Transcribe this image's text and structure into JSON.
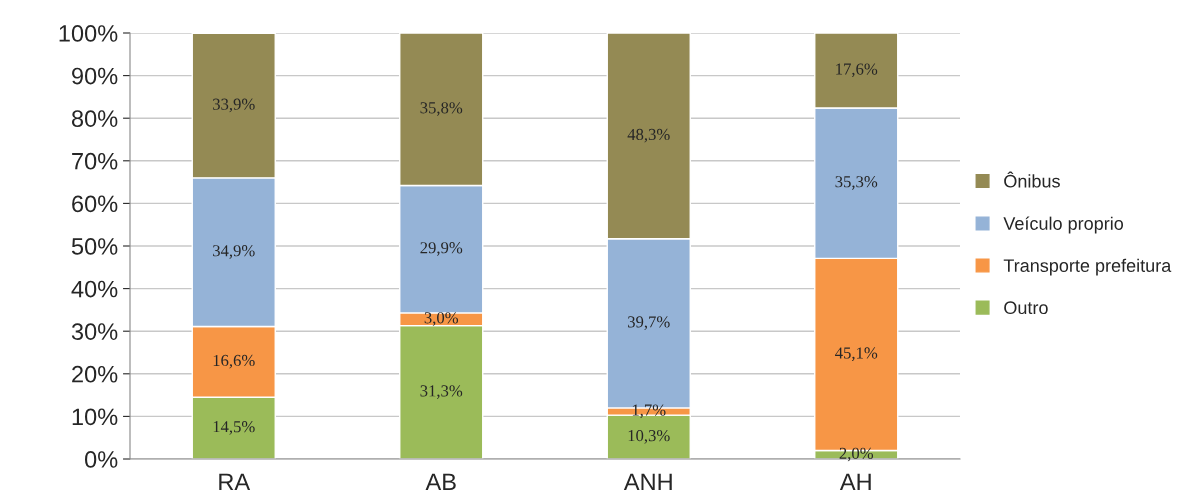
{
  "chart_data": {
    "type": "bar",
    "stacked": true,
    "categories": [
      "RA",
      "AB",
      "ANH",
      "AH"
    ],
    "series": [
      {
        "name": "Outro",
        "color": "#9bbb59",
        "values": [
          14.5,
          31.3,
          10.3,
          2.0
        ],
        "value_labels": [
          "14,5%",
          "31,3%",
          "10,3%",
          "2,0%"
        ]
      },
      {
        "name": "Transporte prefeitura",
        "color": "#f79646",
        "values": [
          16.6,
          3.0,
          1.7,
          45.1
        ],
        "value_labels": [
          "16,6%",
          "3,0%",
          "1,7%",
          "45,1%"
        ]
      },
      {
        "name": "Veículo proprio",
        "color": "#95b3d7",
        "values": [
          34.9,
          29.9,
          39.7,
          35.3
        ],
        "value_labels": [
          "34,9%",
          "29,9%",
          "39,7%",
          "35,3%"
        ]
      },
      {
        "name": "Ônibus",
        "color": "#948a54",
        "values": [
          33.9,
          35.8,
          48.3,
          17.6
        ],
        "value_labels": [
          "33,9%",
          "35,8%",
          "48,3%",
          "17,6%"
        ]
      }
    ],
    "ylim": [
      0,
      100
    ],
    "yticks": [
      {
        "value": 0,
        "label": "0%"
      },
      {
        "value": 10,
        "label": "10%"
      },
      {
        "value": 20,
        "label": "20%"
      },
      {
        "value": 30,
        "label": "30%"
      },
      {
        "value": 40,
        "label": "40%"
      },
      {
        "value": 50,
        "label": "50%"
      },
      {
        "value": 60,
        "label": "60%"
      },
      {
        "value": 70,
        "label": "70%"
      },
      {
        "value": 80,
        "label": "80%"
      },
      {
        "value": 90,
        "label": "90%"
      },
      {
        "value": 100,
        "label": "100%"
      }
    ],
    "grid": "y",
    "legend": "right"
  }
}
